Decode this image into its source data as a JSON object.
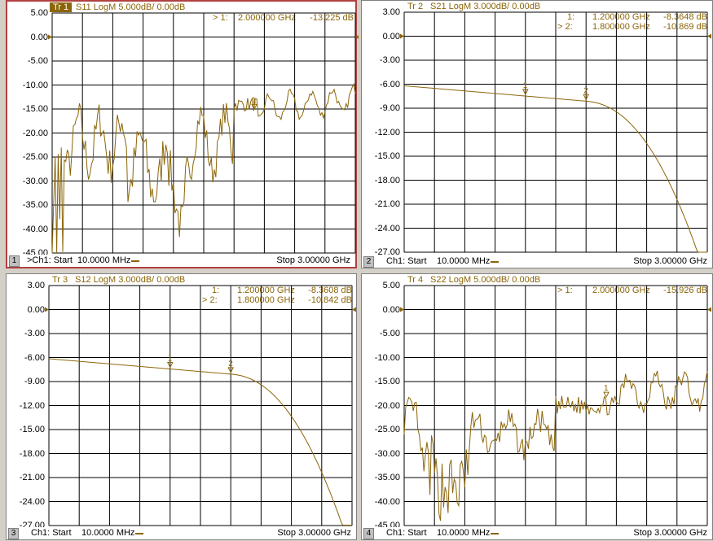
{
  "panels": [
    {
      "id": "1",
      "active": true,
      "trace_tag": "Tr 1",
      "trace_desc": "S11 LogM 5.000dB/  0.00dB",
      "ref_value": 0,
      "ylabels": [
        "5.00",
        "0.00",
        "-5.00",
        "-10.00",
        "-15.00",
        "-20.00",
        "-25.00",
        "-30.00",
        "-35.00",
        "-40.00",
        "-45.00"
      ],
      "ymax": 5,
      "ymin": -45,
      "markers": [
        {
          "prefix": "> 1:",
          "freq": "2.000000 GHz",
          "value": "-13.225 dB"
        }
      ],
      "bottom": {
        "num": "1",
        "start_label": ">Ch1: Start",
        "start_value": "10.0000 MHz",
        "stop_label": "Stop",
        "stop_value": "3.00000 GHz"
      }
    },
    {
      "id": "2",
      "active": false,
      "trace_tag": "Tr 2",
      "trace_desc": "S21 LogM 3.000dB/  0.00dB",
      "ref_value": 0,
      "ylabels": [
        "3.00",
        "0.00",
        "-3.00",
        "-6.00",
        "-9.00",
        "-12.00",
        "-15.00",
        "-18.00",
        "-21.00",
        "-24.00",
        "-27.00"
      ],
      "ymax": 3,
      "ymin": -27,
      "markers": [
        {
          "prefix": "1:",
          "freq": "1.200000 GHz",
          "value": "-8.3648 dB"
        },
        {
          "prefix": "> 2:",
          "freq": "1.800000 GHz",
          "value": "-10.869 dB"
        }
      ],
      "bottom": {
        "num": "2",
        "start_label": "Ch1: Start",
        "start_value": "10.0000 MHz",
        "stop_label": "Stop",
        "stop_value": "3.00000 GHz"
      }
    },
    {
      "id": "3",
      "active": false,
      "trace_tag": "Tr 3",
      "trace_desc": "S12 LogM 3.000dB/  0.00dB",
      "ref_value": 0,
      "ylabels": [
        "3.00",
        "0.00",
        "-3.00",
        "-6.00",
        "-9.00",
        "-12.00",
        "-15.00",
        "-18.00",
        "-21.00",
        "-24.00",
        "-27.00"
      ],
      "ymax": 3,
      "ymin": -27,
      "markers": [
        {
          "prefix": "1:",
          "freq": "1.200000 GHz",
          "value": "-8.3608 dB"
        },
        {
          "prefix": "> 2:",
          "freq": "1.800000 GHz",
          "value": "-10.842 dB"
        }
      ],
      "bottom": {
        "num": "3",
        "start_label": "Ch1: Start",
        "start_value": "10.0000 MHz",
        "stop_label": "Stop",
        "stop_value": "3.00000 GHz"
      }
    },
    {
      "id": "4",
      "active": false,
      "trace_tag": "Tr 4",
      "trace_desc": "S22 LogM 5.000dB/  0.00dB",
      "ref_value": 0,
      "ylabels": [
        "5.00",
        "0.00",
        "-5.00",
        "-10.00",
        "-15.00",
        "-20.00",
        "-25.00",
        "-30.00",
        "-35.00",
        "-40.00",
        "-45.00"
      ],
      "ymax": 5,
      "ymin": -45,
      "markers": [
        {
          "prefix": "> 1:",
          "freq": "2.000000 GHz",
          "value": "-15.926 dB"
        }
      ],
      "bottom": {
        "num": "4",
        "start_label": "Ch1: Start",
        "start_value": "10.0000 MHz",
        "stop_label": "Stop",
        "stop_value": "3.00000 GHz"
      }
    }
  ],
  "colors": {
    "trace": "#8b6508",
    "grid": "#000000",
    "active_border": "#b04040"
  }
}
